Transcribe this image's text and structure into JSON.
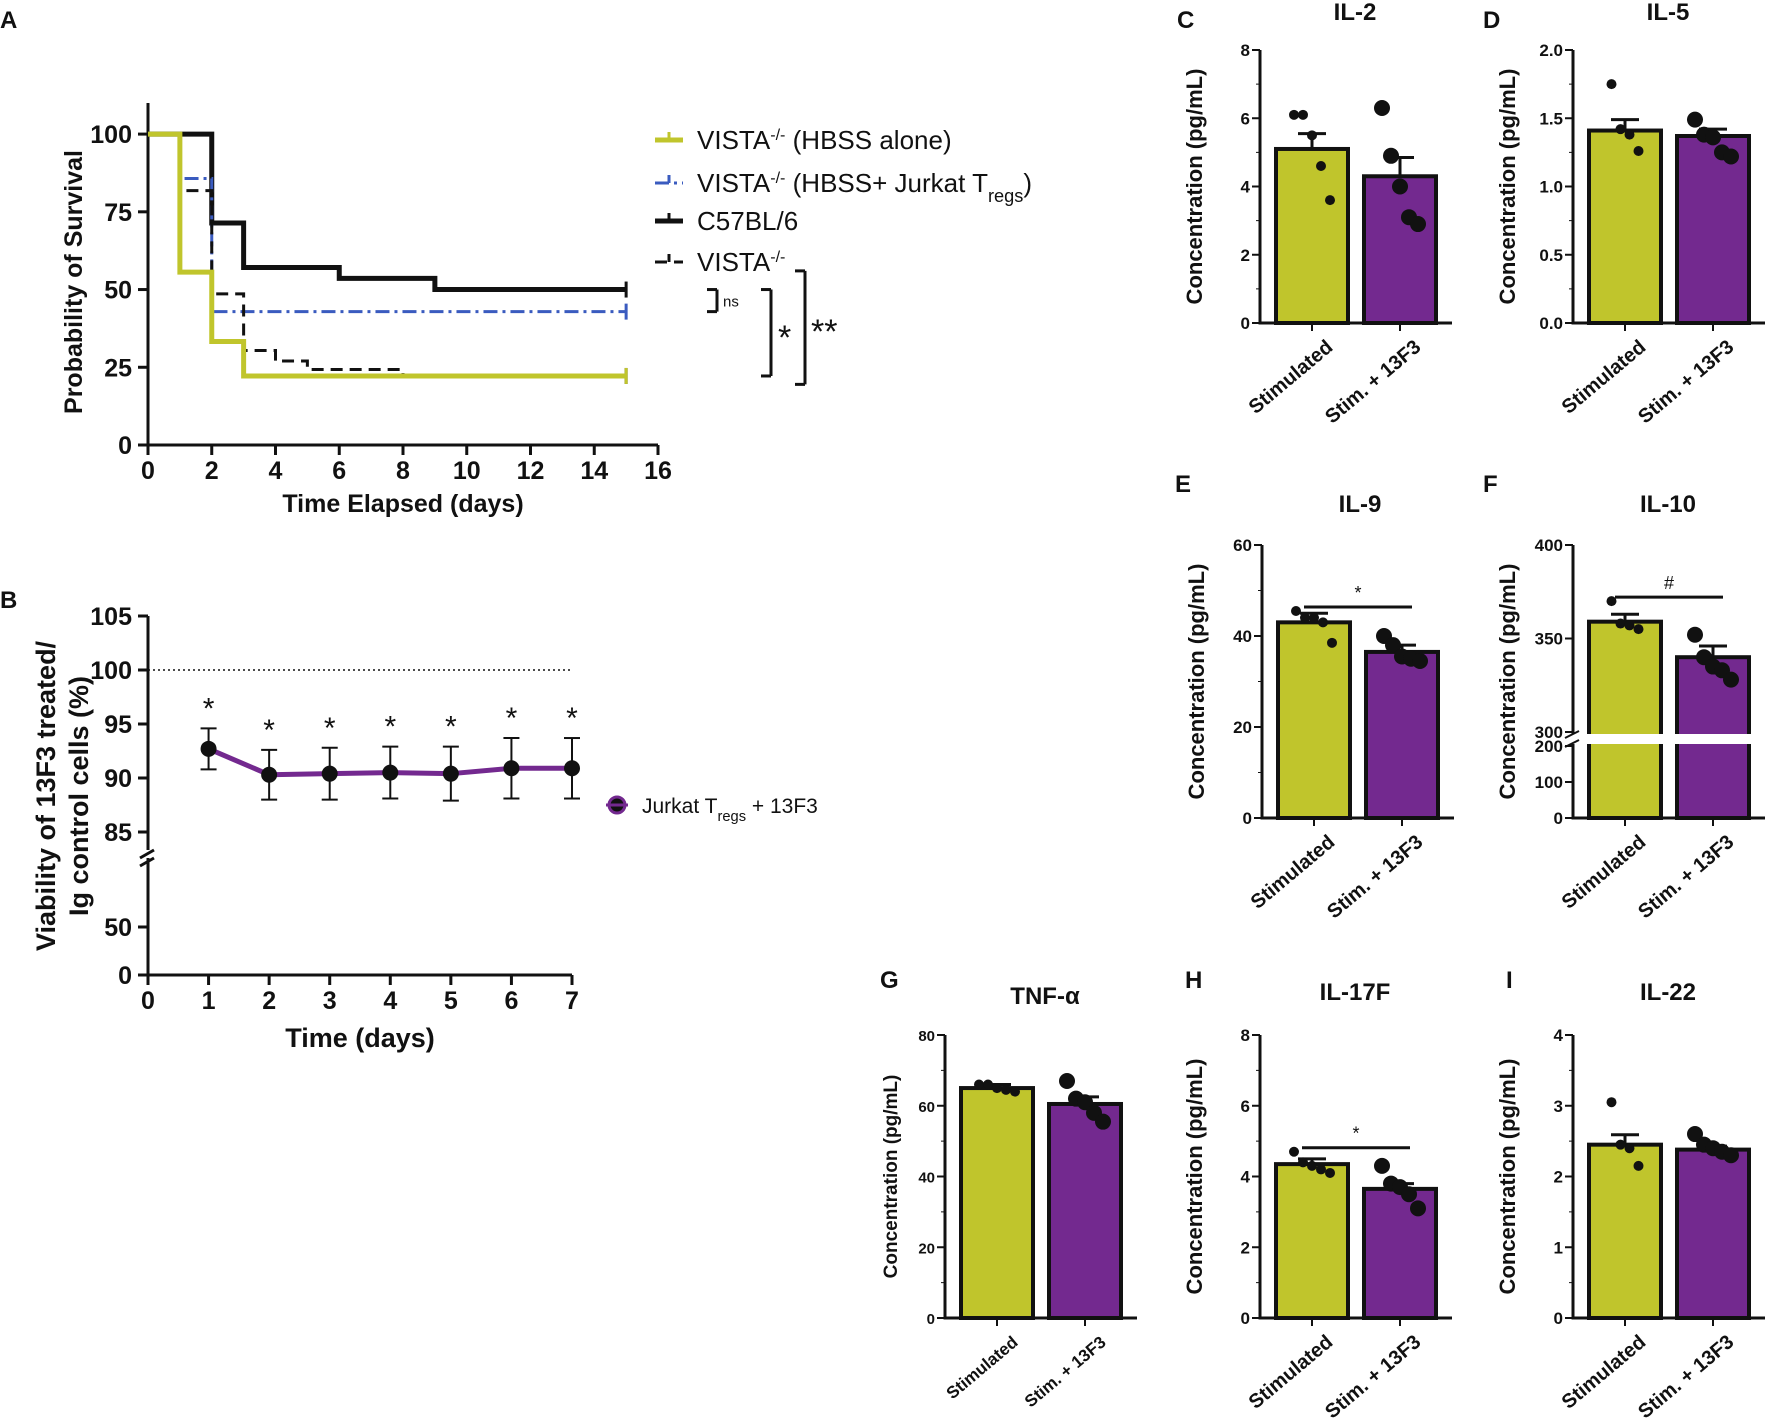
{
  "colors": {
    "olive": "#c0c52c",
    "purple": "#73298f",
    "black": "#111111",
    "blue": "#3a5bbf"
  },
  "chart_data": [
    {
      "panel": "A",
      "type": "line",
      "subtype": "kaplan-meier",
      "xlabel": "Time Elapsed (days)",
      "ylabel": "Probability of Survival",
      "xlim": [
        0,
        16
      ],
      "ylim": [
        0,
        110
      ],
      "xticks": [
        "0",
        "2",
        "4",
        "6",
        "8",
        "10",
        "12",
        "14",
        "16"
      ],
      "yticks": [
        "0",
        "25",
        "50",
        "75",
        "100"
      ],
      "series": [
        {
          "name": "VISTA",
          "sup": "-/-",
          "suffix": " (HBSS alone)",
          "style": "solid-olive",
          "steps": [
            [
              0,
              100
            ],
            [
              1,
              55.6
            ],
            [
              2,
              33.3
            ],
            [
              3,
              22.2
            ],
            [
              15,
              22.2
            ]
          ]
        },
        {
          "name": "VISTA",
          "sup": "-/-",
          "suffix": " (HBSS+ Jurkat T",
          "sub": "regs",
          "suffix2": ")",
          "style": "dashdot-blue",
          "steps": [
            [
              0,
              100
            ],
            [
              1,
              85.7
            ],
            [
              2,
              42.9
            ],
            [
              15,
              42.9
            ]
          ]
        },
        {
          "name": "C57BL/6",
          "style": "solid-black",
          "steps": [
            [
              0,
              100
            ],
            [
              2,
              71.4
            ],
            [
              3,
              57.1
            ],
            [
              6,
              53.6
            ],
            [
              9,
              50
            ],
            [
              15,
              50
            ]
          ]
        },
        {
          "name": "VISTA",
          "sup": "-/-",
          "style": "dashed-black",
          "steps": [
            [
              0,
              100
            ],
            [
              1,
              81.8
            ],
            [
              2,
              48.6
            ],
            [
              3,
              30.4
            ],
            [
              4,
              27
            ],
            [
              5,
              24.3
            ],
            [
              8,
              22.2
            ],
            [
              15,
              22.2
            ]
          ]
        }
      ],
      "annotations": [
        "ns",
        "*",
        "**"
      ]
    },
    {
      "panel": "B",
      "type": "line",
      "xlabel": "Time (days)",
      "ylabel_line1": "Viability of 13F3 treated/",
      "ylabel_line2": "Ig control cells (%)",
      "x": [
        1,
        2,
        3,
        4,
        5,
        6,
        7
      ],
      "y": [
        92.7,
        90.3,
        90.4,
        90.5,
        90.4,
        90.9,
        90.9
      ],
      "err": [
        1.9,
        2.3,
        2.4,
        2.4,
        2.5,
        2.8,
        2.8
      ],
      "sig": [
        "*",
        "*",
        "*",
        "*",
        "*",
        "*",
        "*"
      ],
      "reference_line": 100,
      "xticks": [
        "0",
        "1",
        "2",
        "3",
        "4",
        "5",
        "6",
        "7"
      ],
      "yticks_upper": [
        "85",
        "90",
        "95",
        "100",
        "105"
      ],
      "yticks_lower": [
        "0",
        "50"
      ],
      "legend": {
        "label": "Jurkat T",
        "sub": "regs",
        "suffix": " + 13F3"
      }
    },
    {
      "panel": "C",
      "type": "bar",
      "title": "IL-2",
      "ylabel": "Concentration (pg/mL)",
      "categories": [
        "Stimulated",
        "Stim. + 13F3"
      ],
      "ylim": [
        0,
        8
      ],
      "yticks": [
        "0",
        "2",
        "4",
        "6",
        "8"
      ],
      "values": [
        5.1,
        4.3
      ],
      "sem": [
        0.45,
        0.55
      ],
      "points": [
        [
          6.1,
          6.1,
          5.5,
          4.6,
          3.6
        ],
        [
          6.3,
          4.9,
          4.0,
          3.1,
          2.9
        ]
      ]
    },
    {
      "panel": "D",
      "type": "bar",
      "title": "IL-5",
      "ylabel": "Concentration (pg/mL)",
      "categories": [
        "Stimulated",
        "Stim. + 13F3"
      ],
      "ylim": [
        0,
        2
      ],
      "yticks": [
        "0.0",
        "0.5",
        "1.0",
        "1.5",
        "2.0"
      ],
      "values": [
        1.41,
        1.37
      ],
      "sem": [
        0.08,
        0.05
      ],
      "points": [
        [
          1.75,
          1.42,
          1.38,
          1.26
        ],
        [
          1.49,
          1.38,
          1.36,
          1.25,
          1.22
        ]
      ]
    },
    {
      "panel": "E",
      "type": "bar",
      "title": "IL-9",
      "ylabel": "Concentration (pg/mL)",
      "categories": [
        "Stimulated",
        "Stim. + 13F3"
      ],
      "ylim": [
        0,
        60
      ],
      "yticks": [
        "0",
        "20",
        "40",
        "60"
      ],
      "values": [
        43,
        36.5
      ],
      "sem": [
        2,
        1.5
      ],
      "points": [
        [
          45.5,
          44,
          44,
          43,
          38.5
        ],
        [
          40,
          38,
          35.5,
          35,
          34.5
        ]
      ],
      "sig": "*"
    },
    {
      "panel": "F",
      "type": "bar",
      "title": "IL-10",
      "ylabel": "Concentration (pg/mL)",
      "categories": [
        "Stimulated",
        "Stim. + 13F3"
      ],
      "ylim": [
        0,
        400
      ],
      "axis_break": [
        200,
        300
      ],
      "yticks": [
        "0",
        "100",
        "200",
        "300",
        "350",
        "400"
      ],
      "values": [
        359,
        340
      ],
      "sem": [
        4,
        6
      ],
      "points": [
        [
          370,
          358,
          357,
          355
        ],
        [
          352,
          340,
          335,
          333,
          328
        ]
      ],
      "sig": "#"
    },
    {
      "panel": "G",
      "type": "bar",
      "title": "TNF-α",
      "ylabel": "Concentration (pg/mL)",
      "categories": [
        "Stimulated",
        "Stim. + 13F3"
      ],
      "ylim": [
        0,
        80
      ],
      "yticks": [
        "0",
        "20",
        "40",
        "60",
        "80"
      ],
      "values": [
        65,
        60.5
      ],
      "sem": [
        1,
        2
      ],
      "points": [
        [
          66,
          66,
          65,
          64.5,
          64
        ],
        [
          67,
          62,
          61,
          58,
          55.5
        ]
      ]
    },
    {
      "panel": "H",
      "type": "bar",
      "title": "IL-17F",
      "ylabel": "Concentration (pg/mL)",
      "categories": [
        "Stimulated",
        "Stim. + 13F3"
      ],
      "ylim": [
        0,
        8
      ],
      "yticks": [
        "0",
        "2",
        "4",
        "6",
        "8"
      ],
      "values": [
        4.35,
        3.65
      ],
      "sem": [
        0.15,
        0.15
      ],
      "points": [
        [
          4.7,
          4.4,
          4.3,
          4.2,
          4.1
        ],
        [
          4.3,
          3.8,
          3.7,
          3.5,
          3.1
        ]
      ],
      "sig": "*"
    },
    {
      "panel": "I",
      "type": "bar",
      "title": "IL-22",
      "ylabel": "Concentration (pg/mL)",
      "categories": [
        "Stimulated",
        "Stim. + 13F3"
      ],
      "ylim": [
        0,
        4
      ],
      "yticks": [
        "0",
        "1",
        "2",
        "3",
        "4"
      ],
      "values": [
        2.45,
        2.38
      ],
      "sem": [
        0.14,
        0.05
      ],
      "points": [
        [
          3.05,
          2.45,
          2.4,
          2.15
        ],
        [
          2.6,
          2.45,
          2.4,
          2.35,
          2.3
        ]
      ]
    }
  ]
}
